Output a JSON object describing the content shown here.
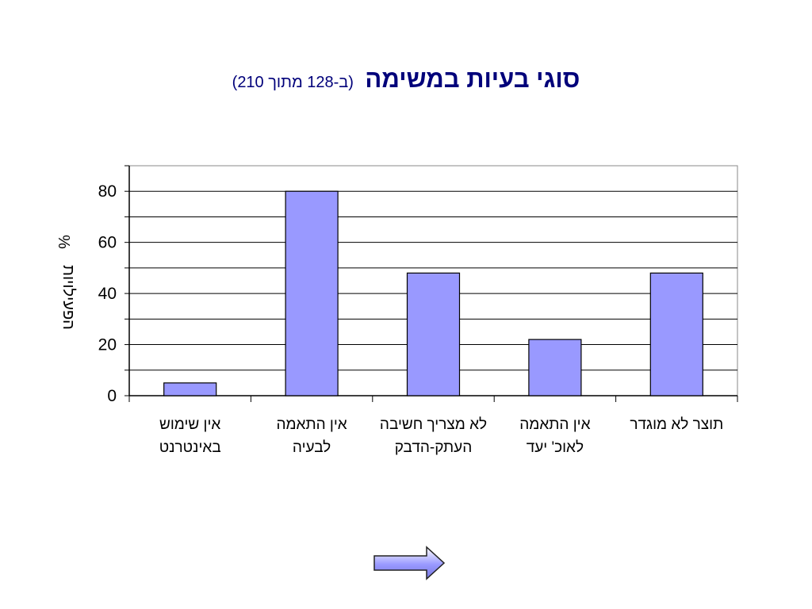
{
  "slide": {
    "title": "סוגי בעיות במשימה",
    "subtitle": "(ב-128 מתוך 210)"
  },
  "chart_data": {
    "type": "bar",
    "title": "סוגי בעיות במשימה",
    "ylabel_lines": [
      "%",
      "הפעילויות"
    ],
    "categories": [
      [
        "אין שימוש",
        "באינטרנט"
      ],
      [
        "אין התאמה",
        "לבעיה"
      ],
      [
        "לא מצריך חשיבה",
        "העתק-הדבק"
      ],
      [
        "אין התאמה",
        "לאוכ' יעד"
      ],
      [
        "תוצר לא מוגדר"
      ]
    ],
    "values": [
      5,
      80,
      48,
      22,
      48
    ],
    "ylim": [
      0,
      90
    ],
    "yticks": [
      0,
      20,
      40,
      60,
      80
    ],
    "grid": true,
    "bar_color": "#9999ff",
    "plot_background": "#ffffff"
  },
  "navigation": {
    "next_icon": "right-arrow-icon",
    "arrow_color": "#9999ff"
  }
}
